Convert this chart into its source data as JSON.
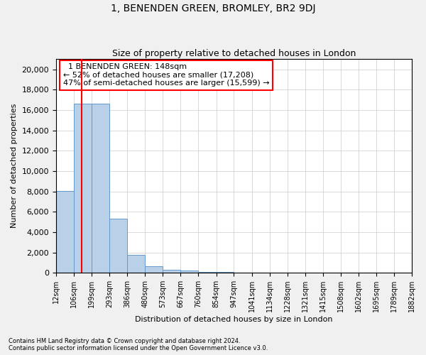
{
  "title": "1, BENENDEN GREEN, BROMLEY, BR2 9DJ",
  "subtitle": "Size of property relative to detached houses in London",
  "xlabel": "Distribution of detached houses by size in London",
  "ylabel": "Number of detached properties",
  "bar_color": "#b8d0e8",
  "bar_edge_color": "#6699cc",
  "red_line_x": 148,
  "bin_edges": [
    12,
    106,
    199,
    293,
    386,
    480,
    573,
    667,
    760,
    854,
    947,
    1041,
    1134,
    1228,
    1321,
    1415,
    1508,
    1602,
    1695,
    1789,
    1882
  ],
  "bar_heights": [
    8050,
    16600,
    16600,
    5300,
    1750,
    620,
    310,
    200,
    110,
    60,
    35,
    20,
    12,
    7,
    4,
    3,
    2,
    1,
    1,
    1
  ],
  "ylim": [
    0,
    21000
  ],
  "yticks": [
    0,
    2000,
    4000,
    6000,
    8000,
    10000,
    12000,
    14000,
    16000,
    18000,
    20000
  ],
  "annotation_text": "  1 BENENDEN GREEN: 148sqm\n← 52% of detached houses are smaller (17,208)\n47% of semi-detached houses are larger (15,599) →",
  "footnote": "Contains HM Land Registry data © Crown copyright and database right 2024.\nContains public sector information licensed under the Open Government Licence v3.0.",
  "background_color": "#f0f0f0",
  "plot_bg_color": "#ffffff",
  "grid_color": "#cccccc",
  "tick_label_fontsize": 7,
  "title_fontsize": 10,
  "subtitle_fontsize": 9,
  "ylabel_fontsize": 8,
  "xlabel_fontsize": 8,
  "footnote_fontsize": 6,
  "annotation_fontsize": 8
}
